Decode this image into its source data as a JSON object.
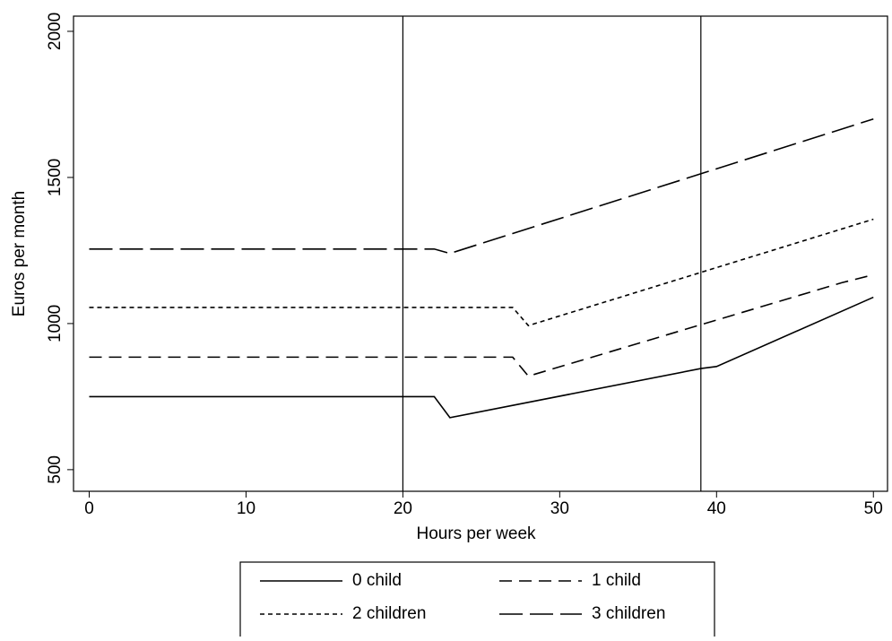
{
  "chart_data": {
    "type": "line",
    "xlabel": "Hours per week",
    "ylabel": "Euros per month",
    "xlim": [
      -1,
      50.9
    ],
    "ylim": [
      426,
      2052
    ],
    "xticks": [
      0,
      10,
      20,
      30,
      40,
      50
    ],
    "yticks": [
      500,
      1000,
      1500,
      2000
    ],
    "xlines": [
      20,
      39
    ],
    "series": [
      {
        "name": "0 child",
        "color": "#000000",
        "dash": "solid",
        "x": [
          0,
          22,
          23,
          39,
          40,
          50
        ],
        "values": [
          750,
          750,
          678,
          846,
          853,
          1090
        ]
      },
      {
        "name": "1 child",
        "color": "#000000",
        "dash": "dash",
        "x": [
          0,
          27,
          28,
          48,
          50
        ],
        "values": [
          885,
          885,
          820,
          1140,
          1167
        ]
      },
      {
        "name": "2 children",
        "color": "#000000",
        "dash": "shortdash",
        "x": [
          0,
          27,
          28,
          50
        ],
        "values": [
          1055,
          1055,
          993,
          1357
        ]
      },
      {
        "name": "3 children",
        "color": "#000000",
        "dash": "longdash",
        "x": [
          0,
          22,
          23,
          50
        ],
        "values": [
          1255,
          1255,
          1240,
          1700
        ]
      }
    ]
  }
}
